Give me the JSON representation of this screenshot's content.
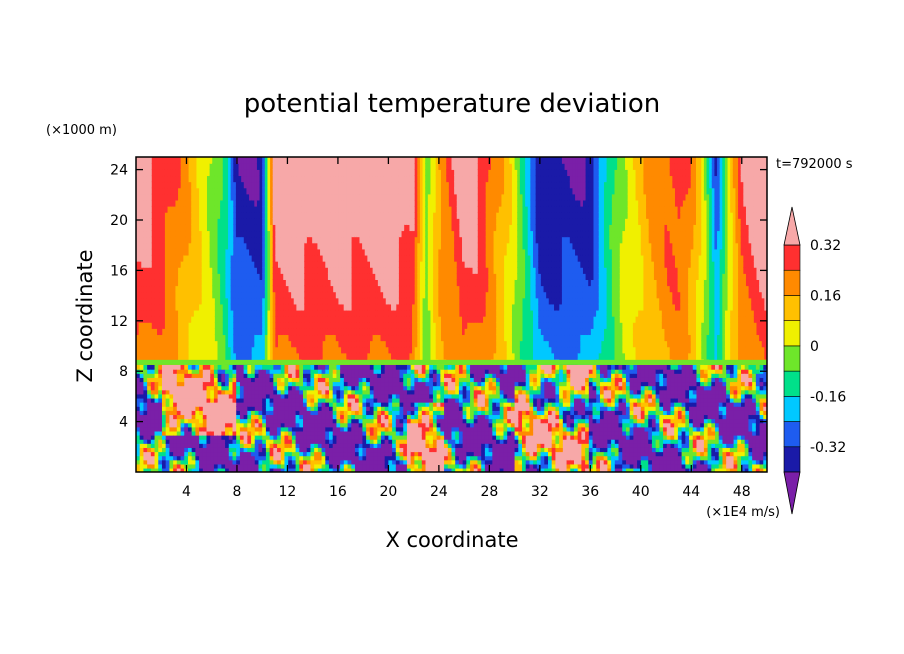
{
  "chart_data": {
    "type": "heatmap",
    "title": "potential temperature deviation",
    "xlabel": "X coordinate",
    "ylabel": "Z coordinate",
    "x_unit": "(×1E4 m/s)",
    "y_unit": "(×1000 m)",
    "time_label": "t=792000 s",
    "xlim": [
      0,
      50
    ],
    "ylim": [
      0,
      25
    ],
    "x_ticks": [
      4,
      8,
      12,
      16,
      20,
      24,
      28,
      32,
      36,
      40,
      44,
      48
    ],
    "y_ticks": [
      4,
      8,
      12,
      16,
      20,
      24
    ],
    "colorbar": {
      "levels": [
        -0.4,
        -0.32,
        -0.24,
        -0.16,
        -0.08,
        0,
        0.08,
        0.16,
        0.24,
        0.32,
        0.4
      ],
      "colors": [
        "#7a1fa8",
        "#1a1aa8",
        "#1e5cf0",
        "#00c8ff",
        "#00e08a",
        "#6ee62a",
        "#f0f000",
        "#ffc000",
        "#ff8a00",
        "#ff3030",
        "#f7a8a8"
      ],
      "labels": [
        "0.32",
        "0.16",
        "0",
        "-0.16",
        "-0.32"
      ],
      "label_values": [
        0.32,
        0.16,
        0,
        -0.16,
        -0.32
      ],
      "extend": "both"
    },
    "upper_layer": {
      "z_range": [
        8.5,
        25
      ],
      "profile_x": [
        0,
        1,
        2,
        3,
        4,
        5,
        6,
        7,
        8,
        10,
        11,
        13,
        15,
        17,
        19,
        21,
        22,
        22.5,
        23,
        24,
        26,
        27,
        28,
        29,
        30,
        31,
        32,
        34,
        36,
        37,
        38,
        39,
        40,
        41,
        42,
        43,
        44,
        45,
        46,
        47,
        48,
        49,
        50
      ],
      "profile_v": [
        0.4,
        0.36,
        0.32,
        0.26,
        0.18,
        0.09,
        0.0,
        -0.12,
        -0.4,
        -0.4,
        0.4,
        0.4,
        0.4,
        0.4,
        0.4,
        0.4,
        0.36,
        0.12,
        -0.05,
        0.18,
        0.4,
        0.36,
        0.26,
        0.16,
        0.02,
        -0.18,
        -0.4,
        -0.4,
        -0.4,
        -0.22,
        -0.06,
        0.04,
        0.12,
        0.2,
        0.26,
        0.3,
        0.22,
        0.02,
        -0.32,
        0.06,
        0.3,
        0.36,
        0.4
      ]
    },
    "lower_layer": {
      "z_range": [
        0,
        8.5
      ],
      "note": "turbulent mixed field"
    }
  }
}
